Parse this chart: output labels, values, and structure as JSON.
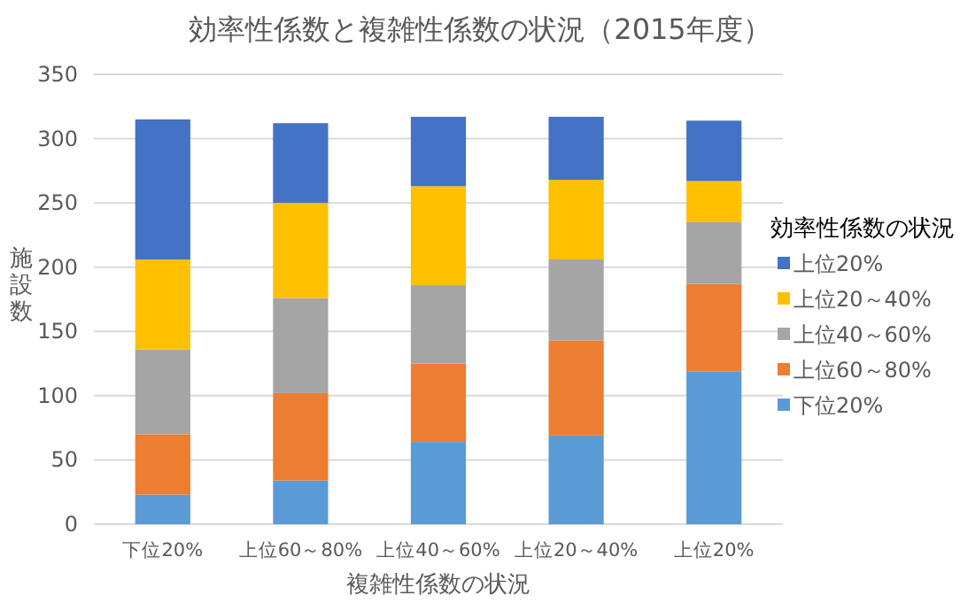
{
  "chart_data": {
    "type": "bar",
    "stacked": true,
    "title": "効率性係数と複雑性係数の状況（2015年度）",
    "xlabel": "複雑性係数の状況",
    "ylabel": "施設数",
    "legend_title": "効率性係数の状況",
    "legend": "right",
    "categories": [
      "下位20%",
      "上位60～80%",
      "上位40～60%",
      "上位20～40%",
      "上位20%"
    ],
    "series": [
      {
        "name": "下位20%",
        "color": "#5b9bd5",
        "values": [
          23,
          34,
          64,
          69,
          119
        ]
      },
      {
        "name": "上位60～80%",
        "color": "#ed7d31",
        "values": [
          47,
          68,
          61,
          74,
          68
        ]
      },
      {
        "name": "上位40～60%",
        "color": "#a5a5a5",
        "values": [
          66,
          74,
          61,
          63,
          48
        ]
      },
      {
        "name": "上位20～40%",
        "color": "#ffc000",
        "values": [
          70,
          74,
          77,
          62,
          32
        ]
      },
      {
        "name": "上位20%",
        "color": "#4472c4",
        "values": [
          109,
          62,
          54,
          49,
          47
        ]
      }
    ],
    "ylim": [
      0,
      350
    ],
    "yticks": [
      0,
      50,
      100,
      150,
      200,
      250,
      300,
      350
    ],
    "grid": "y"
  }
}
